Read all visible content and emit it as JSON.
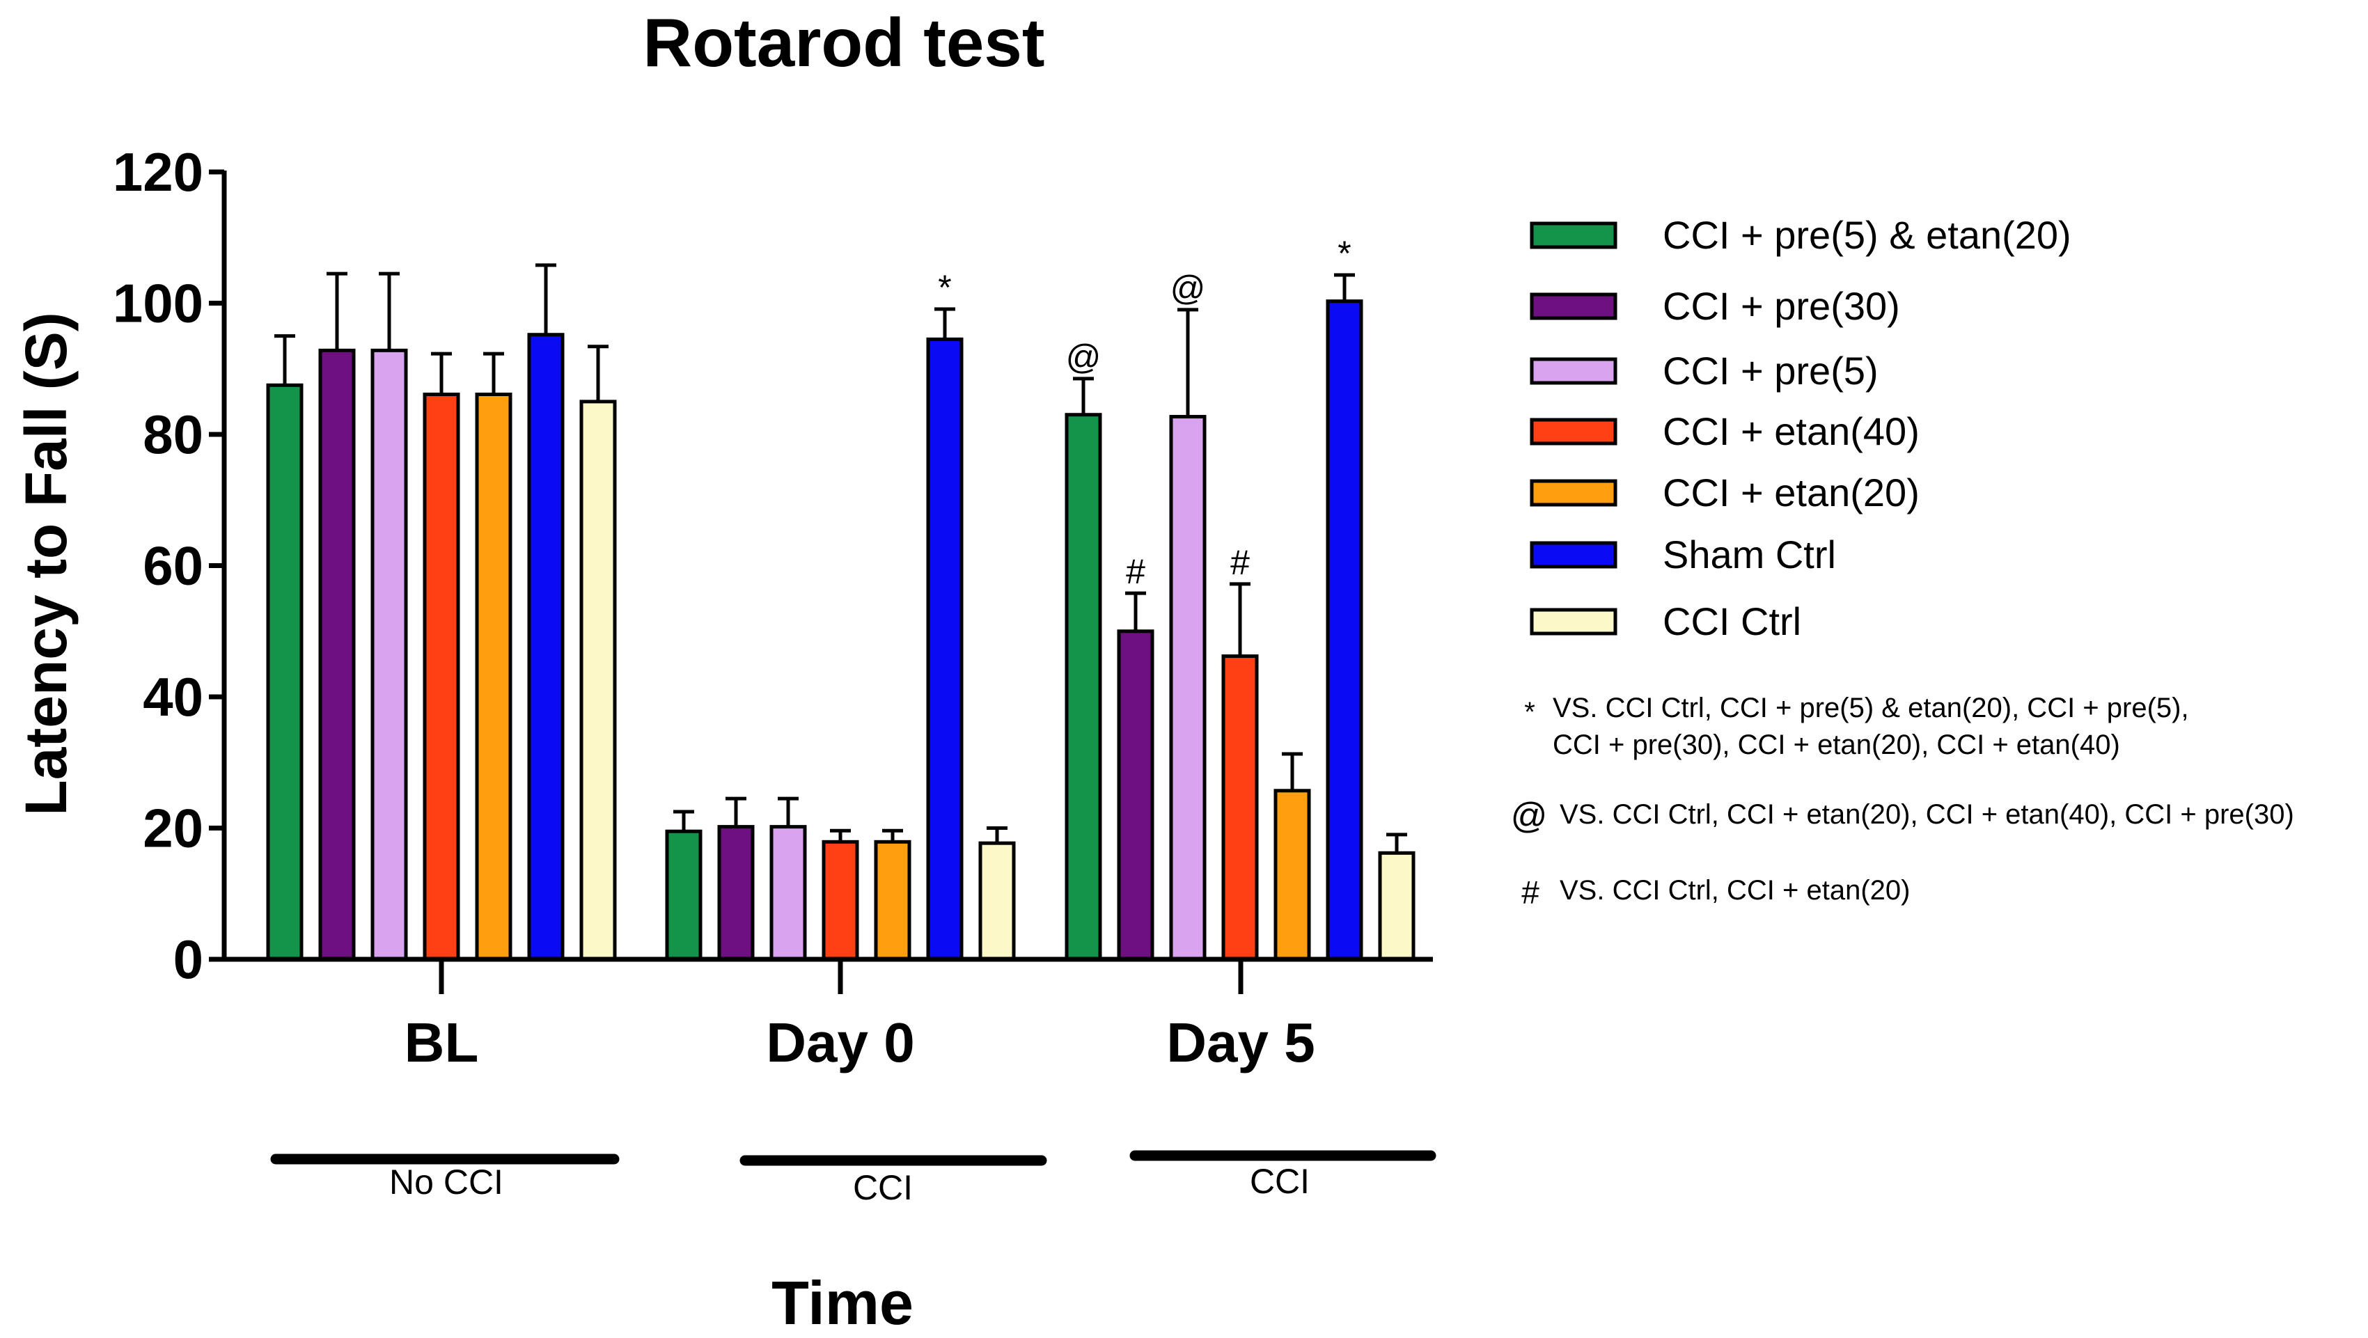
{
  "chart_data": {
    "type": "bar",
    "title": "Rotarod test",
    "xlabel": "Time",
    "ylabel": "Latency to Fall (S)",
    "ylim": [
      0,
      120
    ],
    "yticks": [
      0,
      20,
      40,
      60,
      80,
      100,
      120
    ],
    "categories": [
      "BL",
      "Day 0",
      "Day 5"
    ],
    "group_annotations": [
      "No CCI",
      "CCI",
      "CCI"
    ],
    "series": [
      {
        "name": "CCI + pre(5) & etan(20)",
        "color": "#14934a",
        "values": [
          87.5,
          19.5,
          83
        ],
        "errors": [
          7.5,
          3,
          5.5
        ],
        "marks": [
          "",
          "",
          "@"
        ]
      },
      {
        "name": "CCI + pre(30)",
        "color": "#6e1080",
        "values": [
          92.8,
          20.2,
          50
        ],
        "errors": [
          11.7,
          4.3,
          5.8
        ],
        "marks": [
          "",
          "",
          "#"
        ]
      },
      {
        "name": "CCI + pre(5)",
        "color": "#d9a3ef",
        "values": [
          92.8,
          20.2,
          82.7
        ],
        "errors": [
          11.7,
          4.3,
          16.3
        ],
        "marks": [
          "",
          "",
          "@"
        ]
      },
      {
        "name": "CCI + etan(40)",
        "color": "#ff4015",
        "values": [
          86.1,
          17.9,
          46.2
        ],
        "errors": [
          6.2,
          1.7,
          11
        ],
        "marks": [
          "",
          "",
          "#"
        ]
      },
      {
        "name": "CCI + etan(20)",
        "color": "#ff9f10",
        "values": [
          86.1,
          17.9,
          25.7
        ],
        "errors": [
          6.2,
          1.7,
          5.6
        ],
        "marks": [
          "",
          "",
          ""
        ]
      },
      {
        "name": "Sham Ctrl",
        "color": "#0a0af5",
        "values": [
          95.2,
          94.5,
          100.3
        ],
        "errors": [
          10.6,
          4.6,
          4
        ],
        "marks": [
          "",
          "*",
          "*"
        ]
      },
      {
        "name": "CCI Ctrl",
        "color": "#fdf8c8",
        "values": [
          85,
          17.7,
          16.2
        ],
        "errors": [
          8.4,
          2.3,
          2.8
        ],
        "marks": [
          "",
          "",
          ""
        ]
      }
    ],
    "significance_notes": [
      {
        "symbol": "*",
        "lines": [
          "VS. CCI Ctrl, CCI + pre(5) & etan(20), CCI + pre(5),",
          "CCI + pre(30), CCI + etan(20), CCI + etan(40)"
        ]
      },
      {
        "symbol": "@",
        "lines": [
          "VS. CCI Ctrl, CCI + etan(20), CCI + etan(40), CCI + pre(30)"
        ]
      },
      {
        "symbol": "#",
        "lines": [
          "VS. CCI Ctrl, CCI + etan(20)"
        ]
      }
    ]
  }
}
